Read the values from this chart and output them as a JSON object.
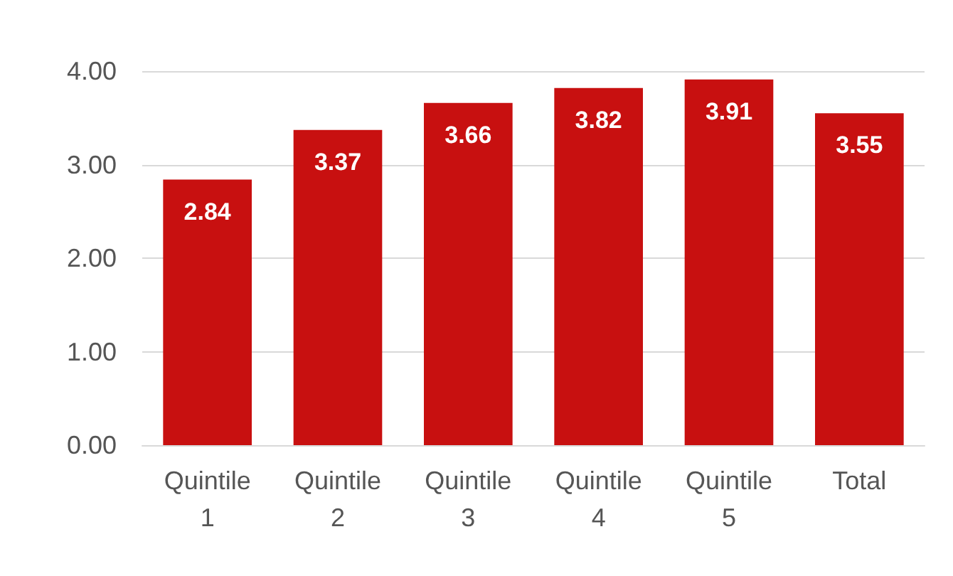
{
  "chart_data": {
    "type": "bar",
    "categories": [
      "Quintile 1",
      "Quintile 2",
      "Quintile 3",
      "Quintile 4",
      "Quintile 5",
      "Total"
    ],
    "values": [
      2.84,
      3.37,
      3.66,
      3.82,
      3.91,
      3.55
    ],
    "color": "#c81010",
    "ylim": [
      0,
      4
    ],
    "yticks": [
      {
        "value": 0,
        "label": "0.00"
      },
      {
        "value": 1,
        "label": "1.00"
      },
      {
        "value": 2,
        "label": "2.00"
      },
      {
        "value": 3,
        "label": "3.00"
      },
      {
        "value": 4,
        "label": "4.00"
      }
    ],
    "grid": "y",
    "data_labels": true
  }
}
